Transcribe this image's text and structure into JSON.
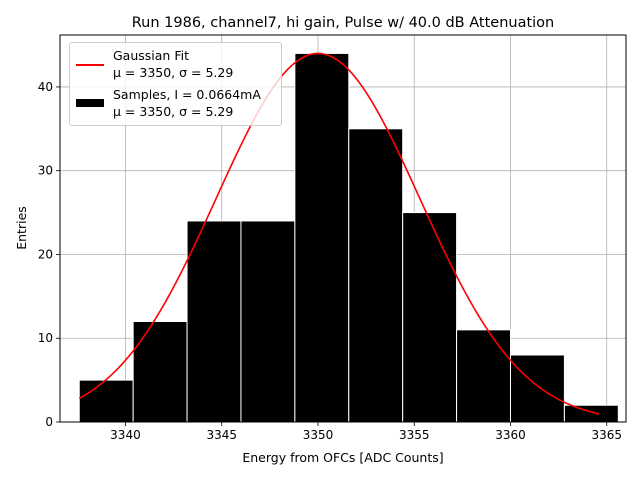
{
  "chart_data": {
    "type": "bar",
    "title": "Run 1986, channel7, hi gain, Pulse w/ 40.0 dB Attenuation",
    "xlabel": "Energy from OFCs [ADC Counts]",
    "ylabel": "Entries",
    "xlim": [
      3336.6,
      3366.0
    ],
    "ylim": [
      0,
      46.2
    ],
    "xticks": [
      3340,
      3345,
      3350,
      3355,
      3360,
      3365
    ],
    "yticks": [
      0,
      10,
      20,
      30,
      40
    ],
    "grid": true,
    "histogram": {
      "name": "Samples, I = 0.0664mA",
      "stats": "μ = 3350, σ = 5.29",
      "bin_edges": [
        3337.6,
        3340.4,
        3343.2,
        3346.0,
        3348.8,
        3351.6,
        3354.4,
        3357.2,
        3360.0,
        3362.8,
        3365.6
      ],
      "counts": [
        5,
        12,
        24,
        24,
        44,
        35,
        25,
        11,
        8,
        2
      ],
      "color": "#000000"
    },
    "fit": {
      "name": "Gaussian Fit",
      "stats": "μ = 3350, σ = 5.29",
      "mu": 3350.0,
      "sigma": 5.29,
      "amplitude": 44.0,
      "x_range": [
        3337.6,
        3364.6
      ],
      "color": "#ff0000"
    },
    "legend": {
      "position": "top-left",
      "entries": [
        {
          "line1": "Gaussian Fit",
          "line2": "μ = 3350, σ = 5.29",
          "kind": "line"
        },
        {
          "line1": "Samples, I = 0.0664mA",
          "line2": "μ = 3350, σ = 5.29",
          "kind": "patch"
        }
      ]
    }
  }
}
